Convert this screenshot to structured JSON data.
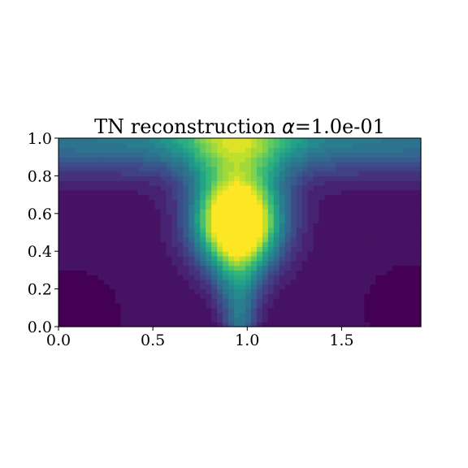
{
  "chart_data": {
    "type": "heatmap",
    "title": {
      "prefix": "TN reconstruction ",
      "symbol": "α",
      "suffix": "=1.0e-01"
    },
    "xlabel": "",
    "ylabel": "",
    "xlim": [
      0,
      1.92
    ],
    "ylim": [
      0,
      1.0
    ],
    "x_ticks": [
      0.0,
      0.5,
      1.0,
      1.5
    ],
    "x_tick_labels": [
      "0.0",
      "0.5",
      "1.0",
      "1.5"
    ],
    "y_ticks": [
      0.0,
      0.2,
      0.4,
      0.6,
      0.8,
      1.0
    ],
    "y_tick_labels": [
      "0.0",
      "0.2",
      "0.4",
      "0.6",
      "0.8",
      "1.0"
    ],
    "colormap": "viridis",
    "grid": false,
    "legend": "none",
    "field_summary": {
      "peak_location": [
        0.95,
        0.55
      ],
      "low_regions": [
        "bottom-left corner",
        "bottom-right corner"
      ],
      "shape": "bright yellow bulb centered near x=0.95, y=0.55 narrowing into a green stem toward the bottom, fanning out to teal along the top edge"
    }
  }
}
